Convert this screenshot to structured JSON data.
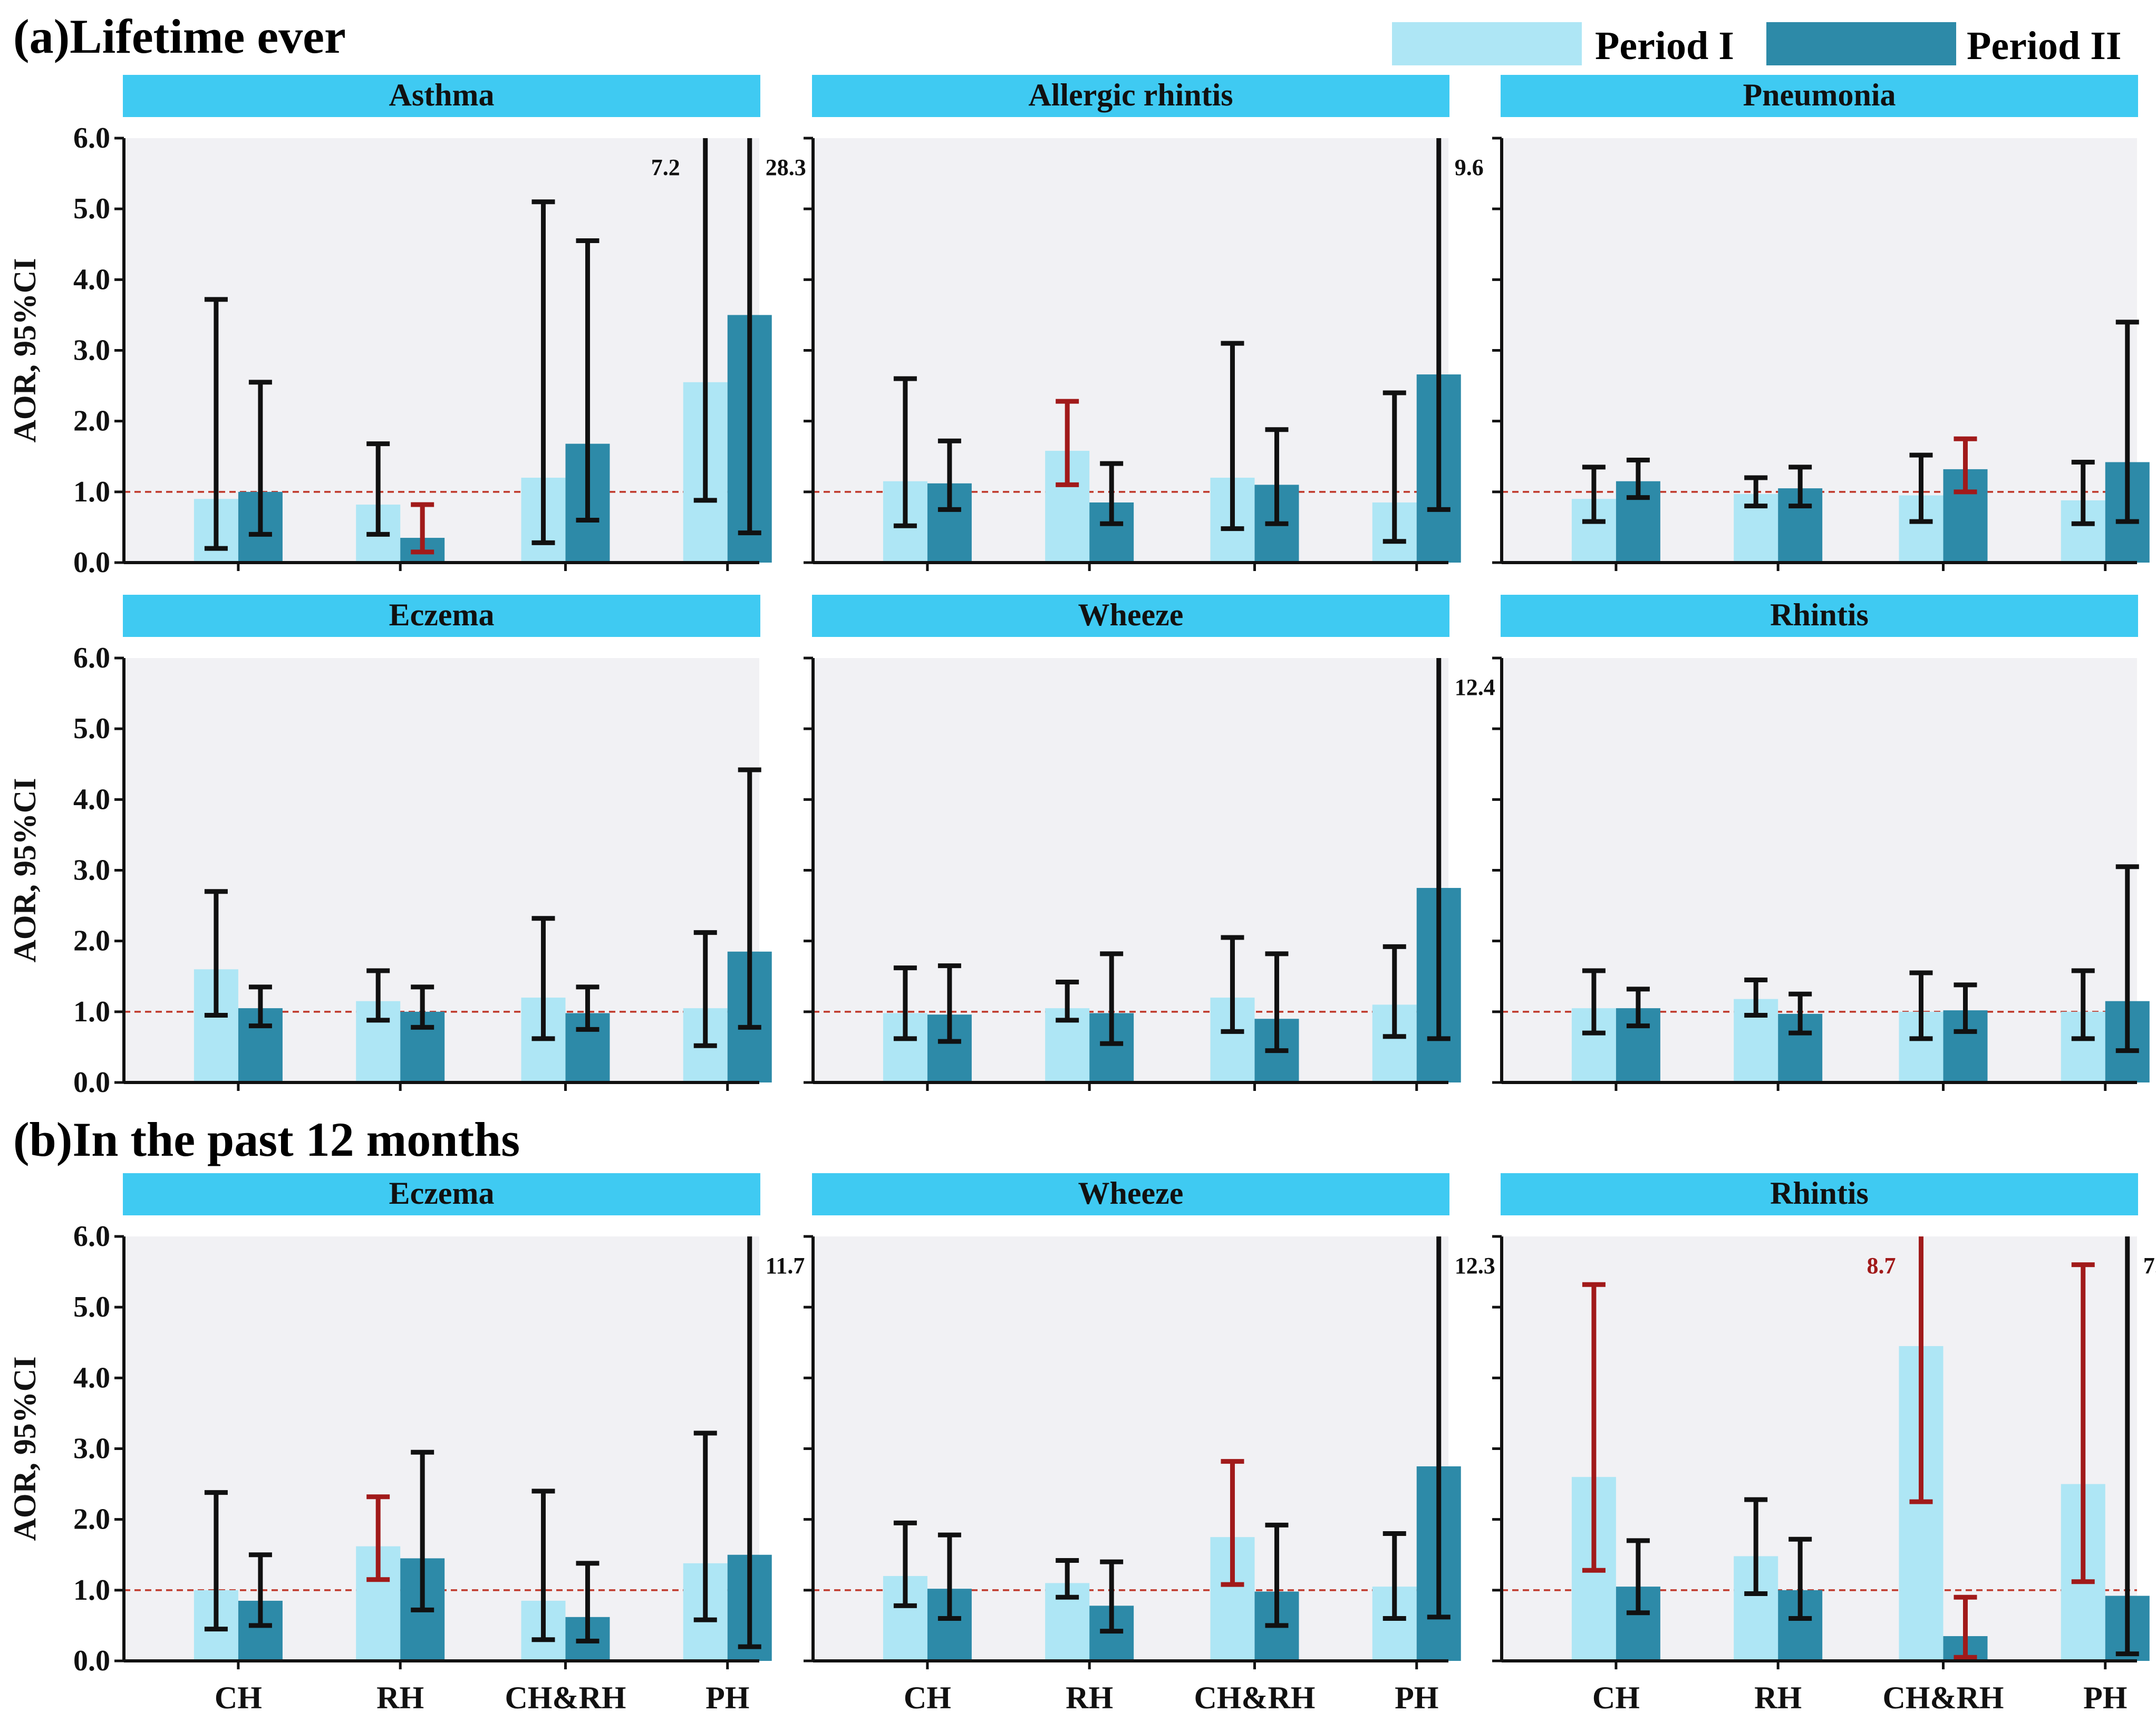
{
  "colors": {
    "period1": "#aee6f5",
    "period2": "#2d8aa8",
    "header": "#3fcaf2",
    "plot_bg": "#f1f1f4",
    "sig": "#a11a1a",
    "ns": "#111111",
    "refline": "#c0392b"
  },
  "legend": {
    "period1": "Period I",
    "period2": "Period II"
  },
  "sections": [
    {
      "id": "a",
      "label": "(a)Lifetime ever"
    },
    {
      "id": "b",
      "label": "(b)In the past 12 months"
    }
  ],
  "y_axis_label": "AOR, 95%CI",
  "chart_data": [
    {
      "type": "bar",
      "title": "Asthma",
      "section": "a",
      "categories": [
        "CH",
        "RH",
        "CH&RH",
        "PH"
      ],
      "ylim": [
        0,
        6
      ],
      "refline": 1.0,
      "yticks": [
        "0.0",
        "1.0",
        "2.0",
        "3.0",
        "4.0",
        "5.0",
        "6.0"
      ],
      "series": [
        {
          "name": "Period I",
          "values": [
            0.9,
            0.82,
            1.2,
            2.55
          ],
          "ci_low": [
            0.2,
            0.4,
            0.28,
            0.88
          ],
          "ci_high": [
            3.72,
            1.68,
            5.1,
            7.2
          ],
          "sig": [
            false,
            false,
            false,
            false
          ],
          "high_label": [
            "",
            "",
            "",
            "7.2"
          ]
        },
        {
          "name": "Period II",
          "values": [
            1.0,
            0.35,
            1.68,
            3.5
          ],
          "ci_low": [
            0.4,
            0.15,
            0.6,
            0.42
          ],
          "ci_high": [
            2.55,
            0.82,
            4.55,
            28.3
          ],
          "sig": [
            false,
            true,
            false,
            false
          ],
          "high_label": [
            "",
            "",
            "",
            "28.3"
          ]
        }
      ]
    },
    {
      "type": "bar",
      "title": "Allergic rhintis",
      "section": "a",
      "categories": [
        "CH",
        "RH",
        "CH&RH",
        "PH"
      ],
      "ylim": [
        0,
        6
      ],
      "refline": 1.0,
      "yticks": [
        "0.0",
        "1.0",
        "2.0",
        "3.0",
        "4.0",
        "5.0",
        "6.0"
      ],
      "series": [
        {
          "name": "Period I",
          "values": [
            1.15,
            1.58,
            1.2,
            0.85
          ],
          "ci_low": [
            0.52,
            1.1,
            0.48,
            0.3
          ],
          "ci_high": [
            2.6,
            2.28,
            3.1,
            2.4
          ],
          "sig": [
            false,
            true,
            false,
            false
          ],
          "high_label": [
            "",
            "",
            "",
            ""
          ]
        },
        {
          "name": "Period II",
          "values": [
            1.12,
            0.85,
            1.1,
            2.66
          ],
          "ci_low": [
            0.75,
            0.55,
            0.55,
            0.75
          ],
          "ci_high": [
            1.72,
            1.4,
            1.88,
            9.6
          ],
          "sig": [
            false,
            false,
            false,
            false
          ],
          "high_label": [
            "",
            "",
            "",
            "9.6"
          ]
        }
      ]
    },
    {
      "type": "bar",
      "title": "Pneumonia",
      "section": "a",
      "categories": [
        "CH",
        "RH",
        "CH&RH",
        "PH"
      ],
      "ylim": [
        0,
        6
      ],
      "refline": 1.0,
      "yticks": [
        "0.0",
        "1.0",
        "2.0",
        "3.0",
        "4.0",
        "5.0",
        "6.0"
      ],
      "series": [
        {
          "name": "Period I",
          "values": [
            0.9,
            0.97,
            0.95,
            0.88
          ],
          "ci_low": [
            0.58,
            0.8,
            0.58,
            0.55
          ],
          "ci_high": [
            1.35,
            1.2,
            1.52,
            1.42
          ],
          "sig": [
            false,
            false,
            false,
            false
          ],
          "high_label": [
            "",
            "",
            "",
            ""
          ]
        },
        {
          "name": "Period II",
          "values": [
            1.15,
            1.05,
            1.32,
            1.42
          ],
          "ci_low": [
            0.92,
            0.8,
            1.0,
            0.58
          ],
          "ci_high": [
            1.45,
            1.35,
            1.75,
            3.4
          ],
          "sig": [
            false,
            false,
            true,
            false
          ],
          "high_label": [
            "",
            "",
            "",
            ""
          ]
        }
      ]
    },
    {
      "type": "bar",
      "title": "Eczema",
      "section": "a",
      "categories": [
        "CH",
        "RH",
        "CH&RH",
        "PH"
      ],
      "ylim": [
        0,
        6
      ],
      "refline": 1.0,
      "yticks": [
        "0.0",
        "1.0",
        "2.0",
        "3.0",
        "4.0",
        "5.0",
        "6.0"
      ],
      "series": [
        {
          "name": "Period I",
          "values": [
            1.6,
            1.15,
            1.2,
            1.05
          ],
          "ci_low": [
            0.95,
            0.88,
            0.62,
            0.52
          ],
          "ci_high": [
            2.7,
            1.58,
            2.32,
            2.12
          ],
          "sig": [
            false,
            false,
            false,
            false
          ],
          "high_label": [
            "",
            "",
            "",
            ""
          ]
        },
        {
          "name": "Period II",
          "values": [
            1.05,
            1.0,
            0.98,
            1.85
          ],
          "ci_low": [
            0.8,
            0.78,
            0.75,
            0.78
          ],
          "ci_high": [
            1.35,
            1.35,
            1.35,
            4.42
          ],
          "sig": [
            false,
            false,
            false,
            false
          ],
          "high_label": [
            "",
            "",
            "",
            ""
          ]
        }
      ]
    },
    {
      "type": "bar",
      "title": "Wheeze",
      "section": "a",
      "categories": [
        "CH",
        "RH",
        "CH&RH",
        "PH"
      ],
      "ylim": [
        0,
        6
      ],
      "refline": 1.0,
      "yticks": [
        "0.0",
        "1.0",
        "2.0",
        "3.0",
        "4.0",
        "5.0",
        "6.0"
      ],
      "series": [
        {
          "name": "Period I",
          "values": [
            0.98,
            1.05,
            1.2,
            1.1
          ],
          "ci_low": [
            0.62,
            0.88,
            0.72,
            0.65
          ],
          "ci_high": [
            1.62,
            1.42,
            2.05,
            1.92
          ],
          "sig": [
            false,
            false,
            false,
            false
          ],
          "high_label": [
            "",
            "",
            "",
            ""
          ]
        },
        {
          "name": "Period II",
          "values": [
            0.96,
            0.98,
            0.9,
            2.75
          ],
          "ci_low": [
            0.58,
            0.55,
            0.45,
            0.62
          ],
          "ci_high": [
            1.65,
            1.82,
            1.82,
            12.4
          ],
          "sig": [
            false,
            false,
            false,
            false
          ],
          "high_label": [
            "",
            "",
            "",
            "12.4"
          ]
        }
      ]
    },
    {
      "type": "bar",
      "title": "Rhintis",
      "section": "a",
      "categories": [
        "CH",
        "RH",
        "CH&RH",
        "PH"
      ],
      "ylim": [
        0,
        6
      ],
      "refline": 1.0,
      "yticks": [
        "0.0",
        "1.0",
        "2.0",
        "3.0",
        "4.0",
        "5.0",
        "6.0"
      ],
      "series": [
        {
          "name": "Period I",
          "values": [
            1.05,
            1.18,
            1.0,
            1.0
          ],
          "ci_low": [
            0.7,
            0.95,
            0.62,
            0.62
          ],
          "ci_high": [
            1.58,
            1.45,
            1.55,
            1.58
          ],
          "sig": [
            false,
            false,
            false,
            false
          ],
          "high_label": [
            "",
            "",
            "",
            ""
          ]
        },
        {
          "name": "Period II",
          "values": [
            1.05,
            0.97,
            1.02,
            1.15
          ],
          "ci_low": [
            0.8,
            0.7,
            0.72,
            0.45
          ],
          "ci_high": [
            1.32,
            1.25,
            1.38,
            3.05
          ],
          "sig": [
            false,
            false,
            false,
            false
          ],
          "high_label": [
            "",
            "",
            "",
            ""
          ]
        }
      ]
    },
    {
      "type": "bar",
      "title": "Eczema",
      "section": "b",
      "categories": [
        "CH",
        "RH",
        "CH&RH",
        "PH"
      ],
      "ylim": [
        0,
        6
      ],
      "refline": 1.0,
      "yticks": [
        "0.0",
        "1.0",
        "2.0",
        "3.0",
        "4.0",
        "5.0",
        "6.0"
      ],
      "series": [
        {
          "name": "Period I",
          "values": [
            1.0,
            1.62,
            0.85,
            1.38
          ],
          "ci_low": [
            0.45,
            1.15,
            0.3,
            0.58
          ],
          "ci_high": [
            2.38,
            2.32,
            2.4,
            3.22
          ],
          "sig": [
            false,
            true,
            false,
            false
          ],
          "high_label": [
            "",
            "",
            "",
            ""
          ]
        },
        {
          "name": "Period II",
          "values": [
            0.85,
            1.45,
            0.62,
            1.5
          ],
          "ci_low": [
            0.5,
            0.72,
            0.28,
            0.2
          ],
          "ci_high": [
            1.5,
            2.95,
            1.38,
            11.7
          ],
          "sig": [
            false,
            false,
            false,
            false
          ],
          "high_label": [
            "",
            "",
            "",
            "11.7"
          ]
        }
      ]
    },
    {
      "type": "bar",
      "title": "Wheeze",
      "section": "b",
      "categories": [
        "CH",
        "RH",
        "CH&RH",
        "PH"
      ],
      "ylim": [
        0,
        6
      ],
      "refline": 1.0,
      "yticks": [
        "0.0",
        "1.0",
        "2.0",
        "3.0",
        "4.0",
        "5.0",
        "6.0"
      ],
      "series": [
        {
          "name": "Period I",
          "values": [
            1.2,
            1.1,
            1.75,
            1.05
          ],
          "ci_low": [
            0.78,
            0.9,
            1.08,
            0.6
          ],
          "ci_high": [
            1.95,
            1.42,
            2.82,
            1.8
          ],
          "sig": [
            false,
            false,
            true,
            false
          ],
          "high_label": [
            "",
            "",
            "",
            ""
          ]
        },
        {
          "name": "Period II",
          "values": [
            1.02,
            0.78,
            0.98,
            2.75
          ],
          "ci_low": [
            0.6,
            0.42,
            0.5,
            0.62
          ],
          "ci_high": [
            1.78,
            1.4,
            1.92,
            12.3
          ],
          "sig": [
            false,
            false,
            false,
            false
          ],
          "high_label": [
            "",
            "",
            "",
            "12.3"
          ]
        }
      ]
    },
    {
      "type": "bar",
      "title": "Rhintis",
      "section": "b",
      "categories": [
        "CH",
        "RH",
        "CH&RH",
        "PH"
      ],
      "ylim": [
        0,
        6
      ],
      "refline": 1.0,
      "yticks": [
        "0.0",
        "1.0",
        "2.0",
        "3.0",
        "4.0",
        "5.0",
        "6.0"
      ],
      "series": [
        {
          "name": "Period I",
          "values": [
            2.6,
            1.48,
            4.45,
            2.5
          ],
          "ci_low": [
            1.28,
            0.95,
            2.25,
            1.12
          ],
          "ci_high": [
            5.32,
            2.28,
            8.7,
            5.6
          ],
          "sig": [
            true,
            false,
            true,
            true
          ],
          "high_label": [
            "",
            "",
            "8.7",
            ""
          ]
        },
        {
          "name": "Period II",
          "values": [
            1.05,
            1.0,
            0.35,
            0.92
          ],
          "ci_low": [
            0.68,
            0.6,
            0.05,
            0.1
          ],
          "ci_high": [
            1.7,
            1.72,
            0.9,
            7.0
          ],
          "sig": [
            false,
            false,
            true,
            false
          ],
          "high_label": [
            "",
            "",
            "",
            "7.0"
          ]
        }
      ]
    }
  ]
}
